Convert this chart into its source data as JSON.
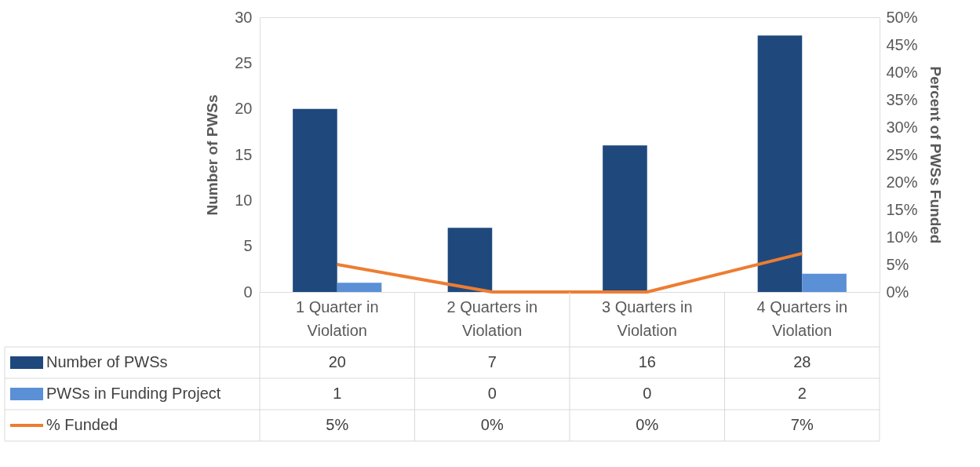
{
  "chart_data": {
    "type": "bar",
    "categories": [
      "1 Quarter in Violation",
      "2 Quarters in Violation",
      "3 Quarters in Violation",
      "4 Quarters in Violation"
    ],
    "ylabel": "Number of PWSs",
    "y2label": "Percent of PWSs Funded",
    "series": [
      {
        "name": "Number of PWSs",
        "color": "#1f497d",
        "values": [
          20,
          7,
          16,
          28
        ]
      },
      {
        "name": "PWSs in Funding Project",
        "color": "#5b8fd6",
        "values": [
          1,
          0,
          0,
          2
        ]
      },
      {
        "name": "% Funded",
        "type": "line",
        "axis": "y2",
        "color": "#ed7d31",
        "values": [
          5,
          0,
          0,
          7
        ],
        "value_labels": [
          "5%",
          "0%",
          "0%",
          "7%"
        ]
      }
    ],
    "ylim": [
      0,
      30
    ],
    "yticks": [
      0,
      5,
      10,
      15,
      20,
      25,
      30
    ],
    "y2lim": [
      0,
      50
    ],
    "y2ticks": [
      {
        "value": 0,
        "label": "0%"
      },
      {
        "value": 5,
        "label": "5%"
      },
      {
        "value": 10,
        "label": "10%"
      },
      {
        "value": 15,
        "label": "15%"
      },
      {
        "value": 20,
        "label": "20%"
      },
      {
        "value": 25,
        "label": "25%"
      },
      {
        "value": 30,
        "label": "30%"
      },
      {
        "value": 35,
        "label": "35%"
      },
      {
        "value": 40,
        "label": "40%"
      },
      {
        "value": 45,
        "label": "45%"
      },
      {
        "value": 50,
        "label": "50%"
      }
    ],
    "data_labels": true,
    "legend": "bottom",
    "grid": false
  }
}
